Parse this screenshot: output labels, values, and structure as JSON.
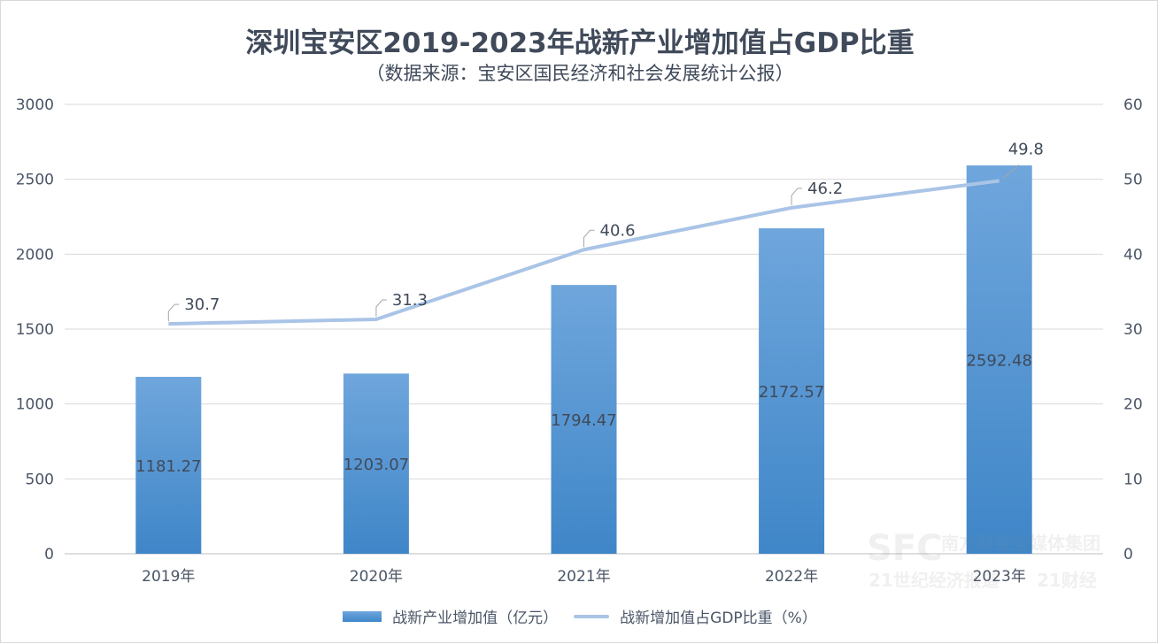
{
  "chart_data": {
    "type": "bar+line",
    "title": "深圳宝安区2019-2023年战新产业增加值占GDP比重",
    "subtitle": "（数据来源：宝安区国民经济和社会发展统计公报）",
    "categories": [
      "2019年",
      "2020年",
      "2021年",
      "2022年",
      "2023年"
    ],
    "series": [
      {
        "name": "战新产业增加值（亿元）",
        "type": "bar",
        "axis": "left",
        "values": [
          1181.27,
          1203.07,
          1794.47,
          2172.57,
          2592.48
        ],
        "labels": [
          "1181.27",
          "1203.07",
          "1794.47",
          "2172.57",
          "2592.48"
        ],
        "color": "#4a8fd0"
      },
      {
        "name": "战新增加值占GDP比重（%）",
        "type": "line",
        "axis": "right",
        "values": [
          30.7,
          31.3,
          40.6,
          46.2,
          49.8
        ],
        "labels": [
          "30.7",
          "31.3",
          "40.6",
          "46.2",
          "49.8"
        ],
        "color": "#a9c4e6"
      }
    ],
    "left_axis": {
      "ylim": [
        0,
        3000
      ],
      "ticks": [
        "0",
        "500",
        "1000",
        "1500",
        "2000",
        "2500",
        "3000"
      ]
    },
    "right_axis": {
      "ylim": [
        0,
        60
      ],
      "ticks": [
        "0",
        "10",
        "20",
        "30",
        "40",
        "50",
        "60"
      ]
    },
    "grid": true,
    "legend": "bottom",
    "watermark": "SFC 南方财经全媒体集团 Southern Finance Omnimedia Corp. 21世纪经济报道 21财经"
  }
}
